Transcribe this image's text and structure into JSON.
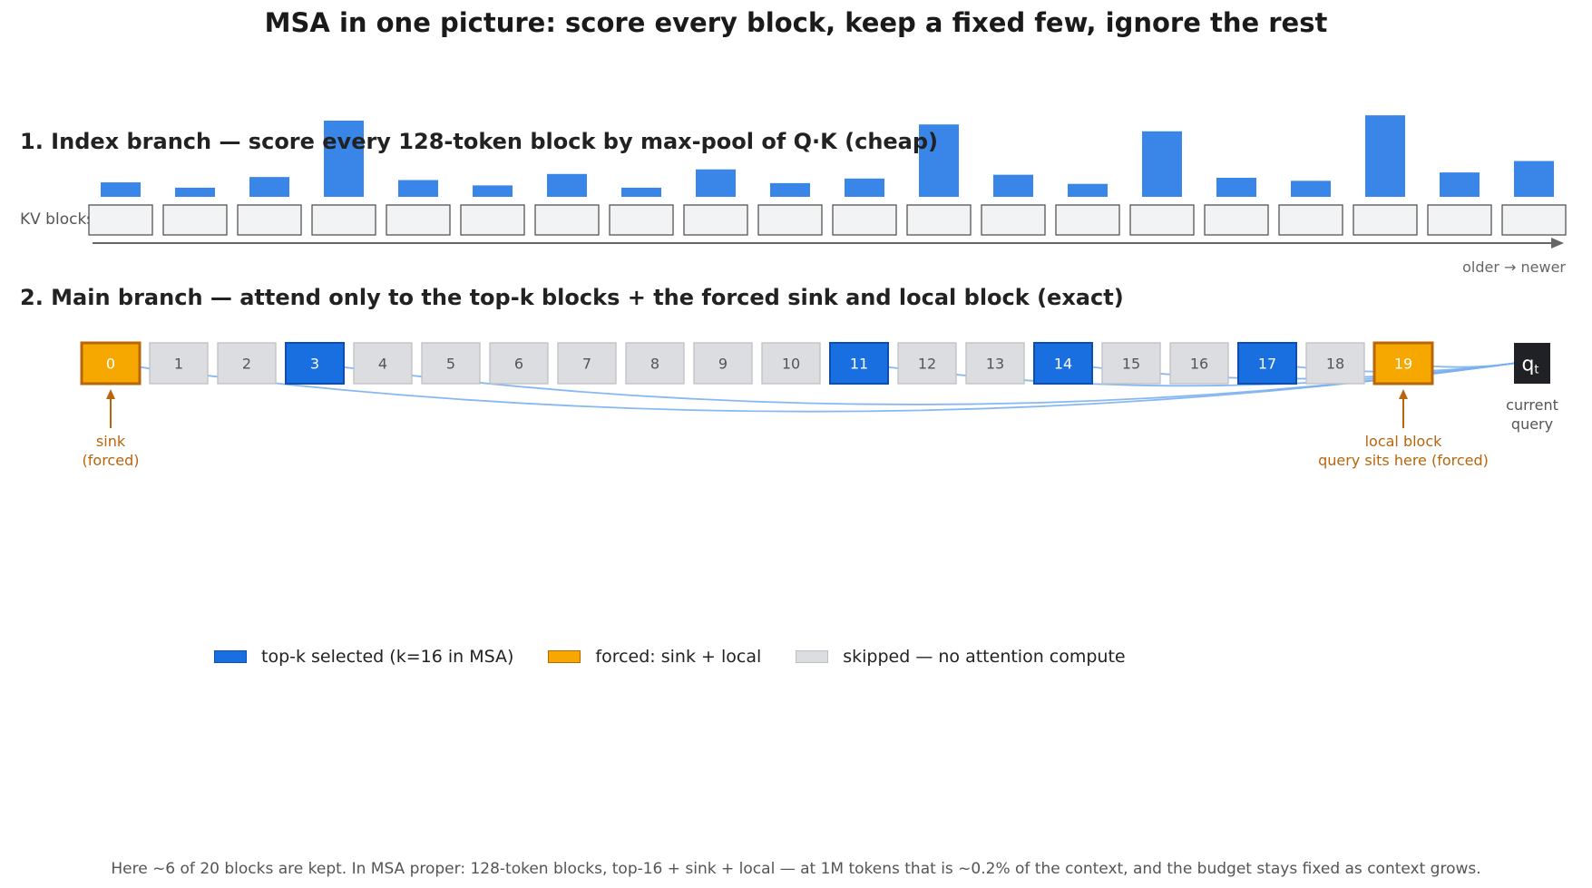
{
  "title": "MSA in one picture: score every block, keep a fixed few, ignore the rest",
  "section1_title": "1.  Index branch — score every 128-token block by max-pool of Q·K  (cheap)",
  "section2_title": "2.  Main branch — attend only to the top-k blocks + the forced sink and local block  (exact)",
  "kv_label": "KV blocks",
  "axis_label": "older  →  newer",
  "query_label": "q",
  "query_subscript": "t",
  "query_caption": [
    "current",
    "query"
  ],
  "sink_caption": [
    "sink",
    "(forced)"
  ],
  "local_caption": [
    "local block",
    "query sits here (forced)"
  ],
  "legend": {
    "selected": "top-k selected  (k=16 in MSA)",
    "forced": "forced: sink + local",
    "skipped": "skipped — no attention compute"
  },
  "footer": "Here ~6 of 20 blocks are kept. In MSA proper: 128-token blocks, top-16 + sink + local — at 1M tokens that is ~0.2% of the context, and the budget stays fixed as context grows.",
  "colors": {
    "score_bar": "#3a86e8",
    "selected": "#1a6fe0",
    "forced": "#f6a800",
    "forced_border": "#b8650c",
    "skipped": "#dcdde0",
    "query": "#1f2124",
    "link": "#7ab0f0"
  },
  "chart_data": {
    "type": "bar",
    "categories": [
      "0",
      "1",
      "2",
      "3",
      "4",
      "5",
      "6",
      "7",
      "8",
      "9",
      "10",
      "11",
      "12",
      "13",
      "14",
      "15",
      "16",
      "17",
      "18",
      "19"
    ],
    "values": [
      0.19,
      0.12,
      0.26,
      1.0,
      0.22,
      0.15,
      0.3,
      0.12,
      0.36,
      0.18,
      0.24,
      0.95,
      0.29,
      0.17,
      0.86,
      0.25,
      0.21,
      1.07,
      0.32,
      0.47
    ]
  },
  "blocks": [
    {
      "label": "0",
      "state": "forced"
    },
    {
      "label": "1",
      "state": "skipped"
    },
    {
      "label": "2",
      "state": "skipped"
    },
    {
      "label": "3",
      "state": "selected"
    },
    {
      "label": "4",
      "state": "skipped"
    },
    {
      "label": "5",
      "state": "skipped"
    },
    {
      "label": "6",
      "state": "skipped"
    },
    {
      "label": "7",
      "state": "skipped"
    },
    {
      "label": "8",
      "state": "skipped"
    },
    {
      "label": "9",
      "state": "skipped"
    },
    {
      "label": "10",
      "state": "skipped"
    },
    {
      "label": "11",
      "state": "selected"
    },
    {
      "label": "12",
      "state": "skipped"
    },
    {
      "label": "13",
      "state": "skipped"
    },
    {
      "label": "14",
      "state": "selected"
    },
    {
      "label": "15",
      "state": "skipped"
    },
    {
      "label": "16",
      "state": "skipped"
    },
    {
      "label": "17",
      "state": "selected"
    },
    {
      "label": "18",
      "state": "skipped"
    },
    {
      "label": "19",
      "state": "forced"
    }
  ]
}
